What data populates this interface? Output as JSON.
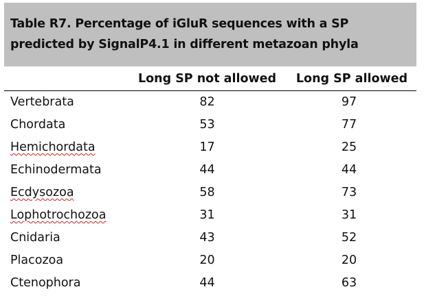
{
  "table": {
    "caption_line1": "Table R7. Percentage of iGluR sequences with a SP",
    "caption_line2": "predicted by SignalP4.1 in different metazoan phyla",
    "columns": [
      "",
      "Long SP not allowed",
      "Long SP allowed"
    ],
    "rows": [
      {
        "name": "Vertebrata",
        "not_allowed": "82",
        "allowed": "97"
      },
      {
        "name": "Chordata",
        "not_allowed": "53",
        "allowed": "77"
      },
      {
        "name": "Hemichordata",
        "not_allowed": "17",
        "allowed": "25"
      },
      {
        "name": "Echinodermata",
        "not_allowed": "44",
        "allowed": "44"
      },
      {
        "name": "Ecdysozoa",
        "not_allowed": "58",
        "allowed": "73"
      },
      {
        "name": "Lophotrochozoa",
        "not_allowed": "31",
        "allowed": "31"
      },
      {
        "name": "Cnidaria",
        "not_allowed": "43",
        "allowed": "52"
      },
      {
        "name": "Placozoa",
        "not_allowed": "20",
        "allowed": "20"
      },
      {
        "name": "Ctenophora",
        "not_allowed": "44",
        "allowed": "63"
      }
    ]
  }
}
